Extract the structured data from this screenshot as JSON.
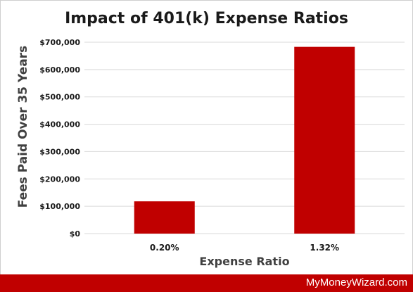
{
  "chart_data": {
    "type": "bar",
    "title": "Impact of 401(k) Expense Ratios",
    "xlabel": "Expense Ratio",
    "ylabel": "Fees Paid Over 35 Years",
    "categories": [
      "0.20%",
      "1.32%"
    ],
    "values": [
      118000,
      683000
    ],
    "ylim": [
      0,
      700000
    ],
    "yticks": [
      0,
      100000,
      200000,
      300000,
      400000,
      500000,
      600000,
      700000
    ],
    "ytick_labels": [
      "$0",
      "$100,000",
      "$200,000",
      "$300,000",
      "$400,000",
      "$500,000",
      "$600,000",
      "$700,000"
    ],
    "grid": true,
    "bar_color": "#c00000"
  },
  "footer": {
    "brand": "MyMoneyWizard.com",
    "color": "#c00000"
  }
}
